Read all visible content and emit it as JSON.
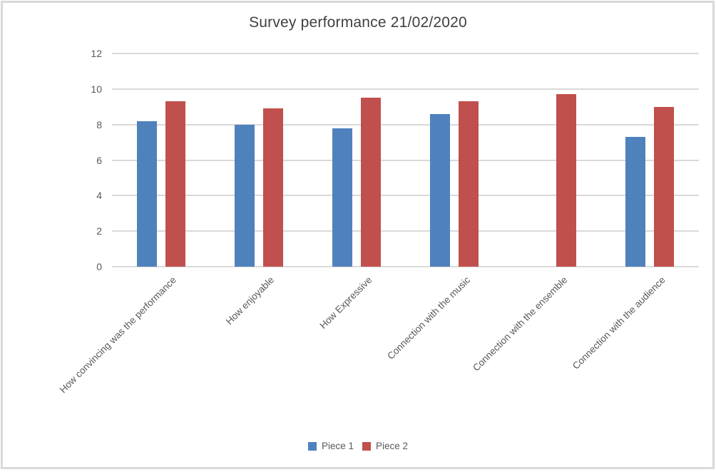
{
  "chart_data": {
    "type": "bar",
    "title": "Survey performance 21/02/2020",
    "categories": [
      "How convincing was the performance",
      "How enjoyable",
      "How Expressive",
      "Connection with the music",
      "Connection with the ensemble",
      "Connection with the audience"
    ],
    "series": [
      {
        "name": "Piece 1",
        "color": "#4F81BD",
        "values": [
          8.2,
          8.0,
          7.8,
          8.6,
          null,
          7.3
        ]
      },
      {
        "name": "Piece 2",
        "color": "#C0504D",
        "values": [
          9.3,
          8.9,
          9.5,
          9.3,
          9.7,
          9.0
        ]
      }
    ],
    "ylim": [
      0,
      12
    ],
    "yticks": [
      0,
      2,
      4,
      6,
      8,
      10,
      12
    ],
    "grid": true,
    "legend_position": "bottom",
    "colors": {
      "gridline": "#d9d9d9",
      "axis_text": "#595959",
      "title_text": "#404040",
      "frame_border": "#d9d9d9"
    }
  }
}
